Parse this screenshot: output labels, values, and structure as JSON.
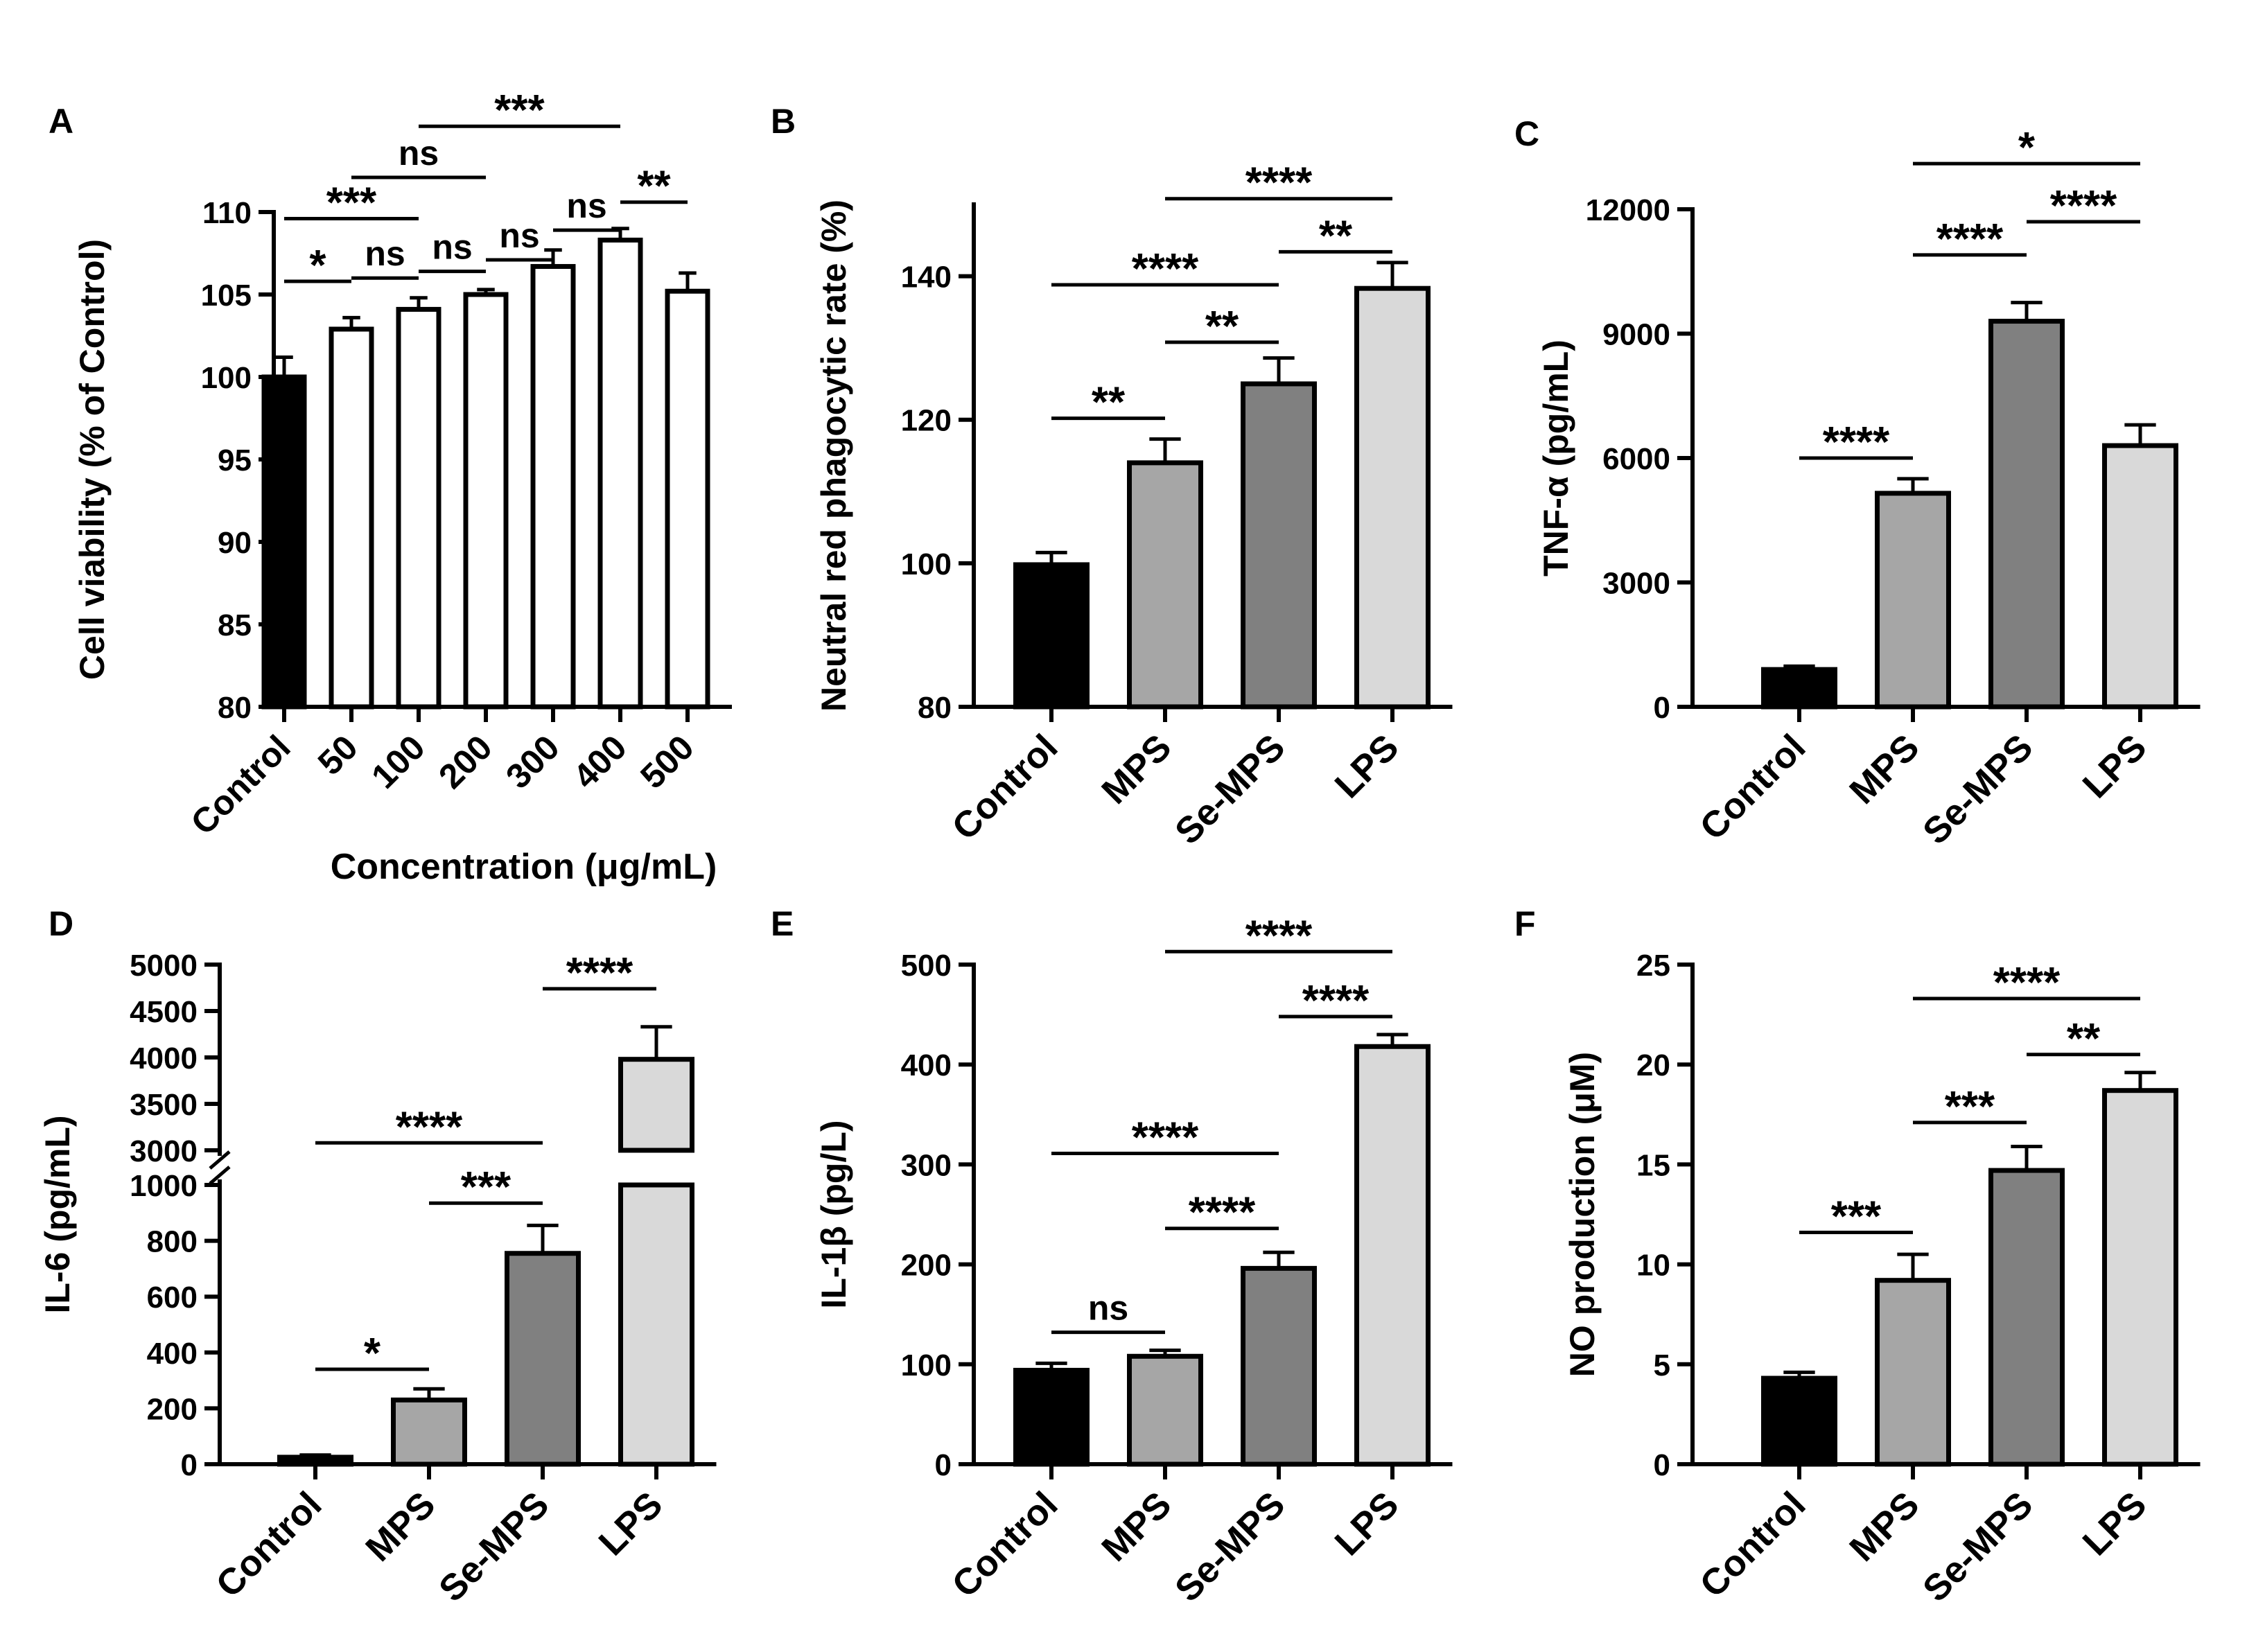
{
  "colors": {
    "control": "#000000",
    "mps": "#a6a6a6",
    "se_mps": "#808080",
    "lps": "#d9d9d9",
    "concentration_bar": "#ffffff",
    "axis": "#000000"
  },
  "chart_data": [
    {
      "panel": "A",
      "type": "bar",
      "ylabel": "Cell viability (% of Control)",
      "xlabel": "Concentration (μg/mL)",
      "categories": [
        "Control",
        "50",
        "100",
        "200",
        "300",
        "400",
        "500"
      ],
      "values": [
        100.0,
        102.9,
        104.1,
        105.0,
        106.7,
        108.3,
        105.2
      ],
      "errors": [
        1.2,
        0.7,
        0.7,
        0.3,
        1.0,
        0.7,
        1.1
      ],
      "bar_color_keys": [
        "control",
        "concentration_bar",
        "concentration_bar",
        "concentration_bar",
        "concentration_bar",
        "concentration_bar",
        "concentration_bar"
      ],
      "ylim": [
        80,
        110
      ],
      "yticks": [
        80,
        85,
        90,
        95,
        100,
        105,
        110
      ],
      "significance": [
        {
          "from": 0,
          "to": 1,
          "label": "*",
          "level": 105.8
        },
        {
          "from": 1,
          "to": 2,
          "label": "ns",
          "level": 106.0
        },
        {
          "from": 3,
          "to": 4,
          "label": "ns",
          "level": 107.1
        },
        {
          "from": 4,
          "to": 5,
          "label": "ns",
          "level": 108.9
        },
        {
          "from": 2,
          "to": 3,
          "label": "ns",
          "level": 106.4
        },
        {
          "from": 5,
          "to": 6,
          "label": "**",
          "level": 110.6
        },
        {
          "from": 0,
          "to": 2,
          "label": "***",
          "level": 109.6
        },
        {
          "from": 1,
          "to": 3,
          "label": "ns",
          "level": 112.1
        },
        {
          "from": 2,
          "to": 5,
          "label": "***",
          "level": 115.2
        }
      ]
    },
    {
      "panel": "B",
      "type": "bar",
      "ylabel": "Neutral red phagocytic rate (%)",
      "xlabel": "",
      "categories": [
        "Control",
        "MPS",
        "Se-MPS",
        "LPS"
      ],
      "values": [
        99.8,
        114.0,
        125.0,
        138.3
      ],
      "errors": [
        1.7,
        3.3,
        3.6,
        3.6
      ],
      "bar_color_keys": [
        "control",
        "mps",
        "se_mps",
        "lps"
      ],
      "ylim": [
        80,
        150
      ],
      "yticks": [
        80,
        100,
        120,
        140
      ],
      "significance": [
        {
          "from": 0,
          "to": 1,
          "label": "**",
          "level": 120.2
        },
        {
          "from": 1,
          "to": 2,
          "label": "**",
          "level": 130.8
        },
        {
          "from": 0,
          "to": 2,
          "label": "****",
          "level": 138.8
        },
        {
          "from": 2,
          "to": 3,
          "label": "**",
          "level": 143.4
        },
        {
          "from": 1,
          "to": 3,
          "label": "****",
          "level": 150.8
        }
      ]
    },
    {
      "panel": "C",
      "type": "bar",
      "ylabel": "TNF-α (pg/mL)",
      "xlabel": "",
      "categories": [
        "Control",
        "MPS",
        "Se-MPS",
        "LPS"
      ],
      "values": [
        900,
        5150,
        9300,
        6300
      ],
      "errors": [
        80,
        350,
        450,
        500
      ],
      "bar_color_keys": [
        "control",
        "mps",
        "se_mps",
        "lps"
      ],
      "ylim": [
        0,
        12000
      ],
      "yticks": [
        0,
        3000,
        6000,
        9000,
        12000
      ],
      "significance": [
        {
          "from": 0,
          "to": 1,
          "label": "****",
          "level": 6000
        },
        {
          "from": 1,
          "to": 2,
          "label": "****",
          "level": 10900
        },
        {
          "from": 2,
          "to": 3,
          "label": "****",
          "level": 11700
        },
        {
          "from": 1,
          "to": 3,
          "label": "*",
          "level": 13100
        }
      ]
    },
    {
      "panel": "D",
      "type": "bar",
      "ylabel": "IL-6 (pg/mL)",
      "xlabel": "",
      "categories": [
        "Control",
        "MPS",
        "Se-MPS",
        "LPS"
      ],
      "values": [
        25,
        230,
        755,
        3980
      ],
      "errors": [
        8,
        40,
        100,
        350
      ],
      "bar_color_keys": [
        "control",
        "mps",
        "se_mps",
        "lps"
      ],
      "axis_break": [
        1000,
        3000
      ],
      "ylim": [
        0,
        5000
      ],
      "yticks": [
        0,
        200,
        400,
        600,
        800,
        1000,
        3000,
        3500,
        4000,
        4500,
        5000
      ],
      "significance": [
        {
          "from": 0,
          "to": 1,
          "label": "*",
          "level": 340
        },
        {
          "from": 1,
          "to": 2,
          "label": "***",
          "level": 935
        },
        {
          "from": 0,
          "to": 2,
          "label": "****",
          "level": 3080
        },
        {
          "from": 2,
          "to": 3,
          "label": "****",
          "level": 4740
        }
      ]
    },
    {
      "panel": "E",
      "type": "bar",
      "ylabel": "IL-1β (pg/L)",
      "xlabel": "",
      "categories": [
        "Control",
        "MPS",
        "Se-MPS",
        "LPS"
      ],
      "values": [
        94,
        108,
        196,
        418
      ],
      "errors": [
        7,
        6,
        16,
        12
      ],
      "bar_color_keys": [
        "control",
        "mps",
        "se_mps",
        "lps"
      ],
      "ylim": [
        0,
        500
      ],
      "yticks": [
        0,
        100,
        200,
        300,
        400,
        500
      ],
      "significance": [
        {
          "from": 0,
          "to": 1,
          "label": "ns",
          "level": 132
        },
        {
          "from": 1,
          "to": 2,
          "label": "****",
          "level": 236
        },
        {
          "from": 0,
          "to": 2,
          "label": "****",
          "level": 311
        },
        {
          "from": 2,
          "to": 3,
          "label": "****",
          "level": 448
        },
        {
          "from": 1,
          "to": 3,
          "label": "****",
          "level": 513
        }
      ]
    },
    {
      "panel": "F",
      "type": "bar",
      "ylabel": "NO production (μM)",
      "xlabel": "",
      "categories": [
        "Control",
        "MPS",
        "Se-MPS",
        "LPS"
      ],
      "values": [
        4.3,
        9.2,
        14.7,
        18.7
      ],
      "errors": [
        0.3,
        1.3,
        1.2,
        0.9
      ],
      "bar_color_keys": [
        "control",
        "mps",
        "se_mps",
        "lps"
      ],
      "ylim": [
        0,
        25
      ],
      "yticks": [
        0,
        5,
        10,
        15,
        20,
        25
      ],
      "significance": [
        {
          "from": 0,
          "to": 1,
          "label": "***",
          "level": 11.6
        },
        {
          "from": 1,
          "to": 2,
          "label": "***",
          "level": 17.1
        },
        {
          "from": 2,
          "to": 3,
          "label": "**",
          "level": 20.5
        },
        {
          "from": 1,
          "to": 3,
          "label": "****",
          "level": 23.3
        }
      ]
    }
  ]
}
